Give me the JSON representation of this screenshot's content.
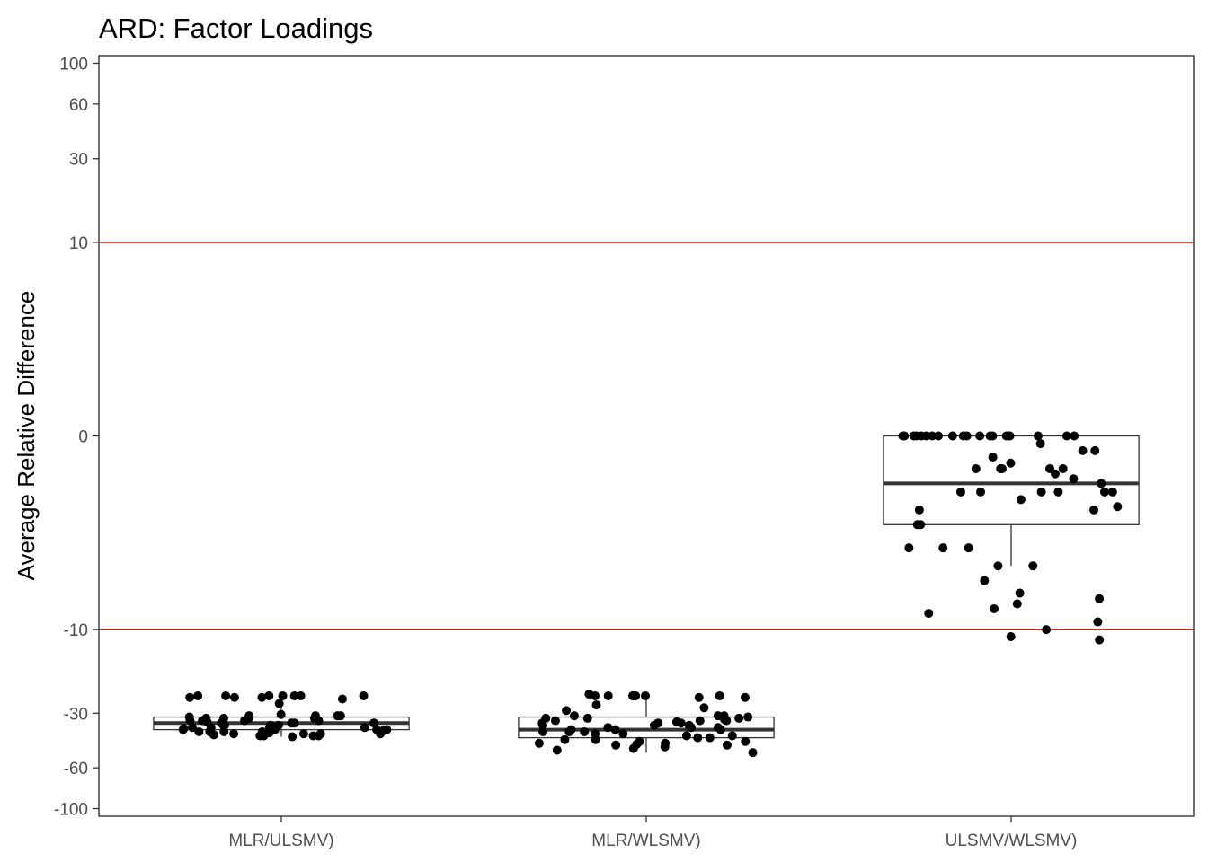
{
  "chart_data": {
    "type": "boxplot",
    "title": "ARD: Factor Loadings",
    "xlabel": "",
    "ylabel": "Average Relative Difference",
    "ylim": [
      -110,
      110
    ],
    "y_ticks": [
      100,
      60,
      30,
      10,
      0,
      -10,
      -30,
      -60,
      -100
    ],
    "reference_lines": [
      10,
      -10
    ],
    "reference_line_color": "#e41a1c",
    "grid": false,
    "categories": [
      "MLR/ULSMV)",
      "MLR/WLSMV)",
      "ULSMV/WLSMV)"
    ],
    "boxes": [
      {
        "category": "MLR/ULSMV)",
        "whisker_low": -40.5,
        "q1": -37,
        "median": -34,
        "q3": -31.5,
        "whisker_high": -24
      },
      {
        "category": "MLR/WLSMV)",
        "whisker_low": -49.5,
        "q1": -41,
        "median": -37,
        "q3": -31.5,
        "whisker_high": -24
      },
      {
        "category": "ULSMV/WLSMV)",
        "whisker_low": -4,
        "q1": -2,
        "median": -0.8,
        "q3": 0,
        "whisker_high": 0
      }
    ],
    "points": [
      {
        "category": "MLR/ULSMV)",
        "values": [
          -26.5,
          -24,
          -24,
          -24,
          -24,
          -24,
          -24.5,
          -24,
          -24,
          -24.5,
          -24.5,
          -25,
          -31,
          -31.5,
          -30.5,
          -32,
          -33,
          -33.5,
          -34,
          -35,
          -36,
          -36.5,
          -37,
          -37.5,
          -38,
          -38.5,
          -39,
          -39.5,
          -40,
          -40.5,
          -40,
          -39,
          -38,
          -37,
          -36,
          -35,
          -34,
          -33,
          -32,
          -31,
          -31,
          -32,
          -33,
          -34,
          -35,
          -36,
          -37,
          -38,
          -39,
          -40,
          -31,
          -32,
          -33,
          -34,
          -35,
          -36,
          -37,
          -38,
          -39,
          -40
        ]
      },
      {
        "category": "MLR/WLSMV)",
        "values": [
          -24.5,
          -24,
          -24,
          -24,
          -24,
          -24,
          -24,
          -24,
          -24,
          -23.5,
          -24.5,
          -29,
          -27,
          -28,
          -31,
          -31.5,
          -32,
          -32.5,
          -33,
          -33.5,
          -34,
          -35,
          -36,
          -37,
          -38,
          -39,
          -40,
          -41,
          -42,
          -43,
          -44,
          -45,
          -46,
          -47,
          -48,
          -49.5,
          -44.5,
          -45,
          -44,
          -43,
          -42,
          -41,
          -40,
          -39,
          -38,
          -37,
          -36,
          -35,
          -34,
          -33,
          -32,
          -31,
          -31,
          -32,
          -33,
          -34,
          -35,
          -36,
          -37,
          -38
        ]
      },
      {
        "category": "ULSMV/WLSMV)",
        "values": [
          0,
          0,
          0,
          0,
          0,
          0,
          0,
          0,
          0,
          0,
          0,
          0,
          0,
          0,
          0,
          0,
          0,
          0,
          0,
          0,
          -0.5,
          -0.5,
          -0.5,
          -1,
          -1,
          -1,
          -1,
          -1,
          -1.5,
          -1.5,
          -2,
          -2,
          -3,
          -3,
          -3,
          -4,
          -4,
          -5,
          -6,
          -6.5,
          -7,
          -7.5,
          -8,
          -9,
          -10,
          -11,
          -11.5,
          -0.5,
          -0.5,
          -1,
          -0.2,
          -0.3,
          -0.4,
          -0.6,
          -0.7,
          -0.8,
          -1.2,
          -1.4,
          -0.1,
          -0.2
        ]
      }
    ]
  }
}
